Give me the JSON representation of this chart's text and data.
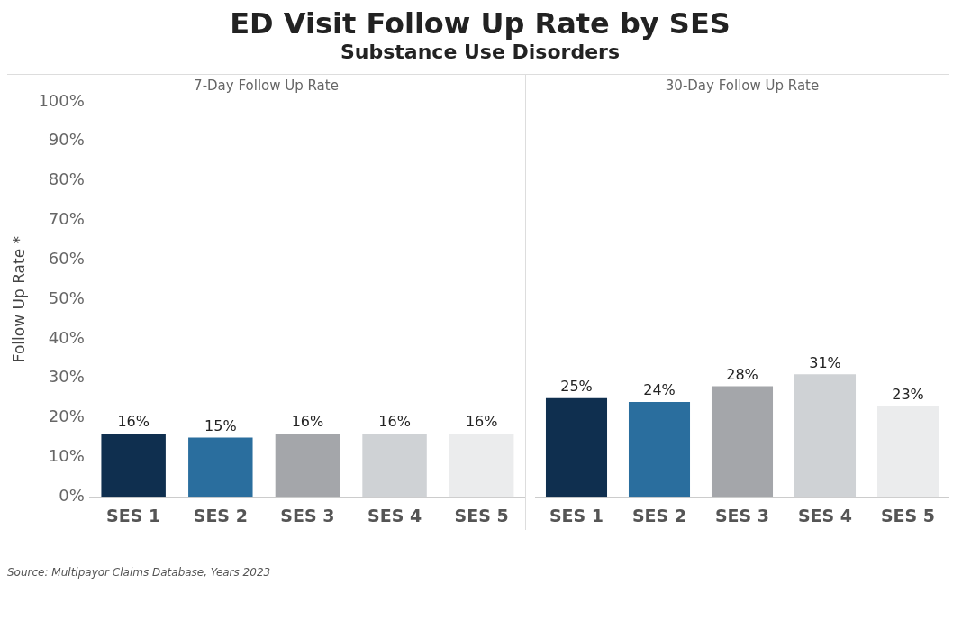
{
  "chart_data": [
    {
      "type": "bar",
      "title": "7-Day Follow Up Rate",
      "ylabel": "Follow Up Rate *",
      "categories": [
        "SES 1",
        "SES 2",
        "SES 3",
        "SES 4",
        "SES 5"
      ],
      "values": [
        16,
        15,
        16,
        16,
        16
      ],
      "colors": [
        "#0f2f4f",
        "#2a6e9e",
        "#a4a6aa",
        "#cfd2d5",
        "#ebeced"
      ],
      "ylim": [
        0,
        100
      ],
      "yticks": [
        {
          "value": 0,
          "label": "0%"
        },
        {
          "value": 10,
          "label": "10%"
        },
        {
          "value": 20,
          "label": "20%"
        },
        {
          "value": 30,
          "label": "30%"
        },
        {
          "value": 40,
          "label": "40%"
        },
        {
          "value": 50,
          "label": "50%"
        },
        {
          "value": 60,
          "label": "60%"
        },
        {
          "value": 70,
          "label": "70%"
        },
        {
          "value": 80,
          "label": "80%"
        },
        {
          "value": 90,
          "label": "90%"
        },
        {
          "value": 100,
          "label": "100%"
        }
      ],
      "value_labels": [
        "16%",
        "15%",
        "16%",
        "16%",
        "16%"
      ],
      "annotations": [
        "ED Visit Follow Up Rate by SES",
        "Substance Use Disorders",
        "Source: Multipayor Claims Database, Years 2023"
      ]
    },
    {
      "type": "bar",
      "title": "30-Day Follow Up Rate",
      "categories": [
        "SES 1",
        "SES 2",
        "SES 3",
        "SES 4",
        "SES 5"
      ],
      "values": [
        25,
        24,
        28,
        31,
        23
      ],
      "colors": [
        "#0f2f4f",
        "#2a6e9e",
        "#a4a6aa",
        "#cfd2d5",
        "#ebeced"
      ],
      "ylim": [
        0,
        100
      ],
      "tick_labels": "x",
      "value_labels": [
        "25%",
        "24%",
        "28%",
        "31%",
        "23%"
      ]
    }
  ]
}
